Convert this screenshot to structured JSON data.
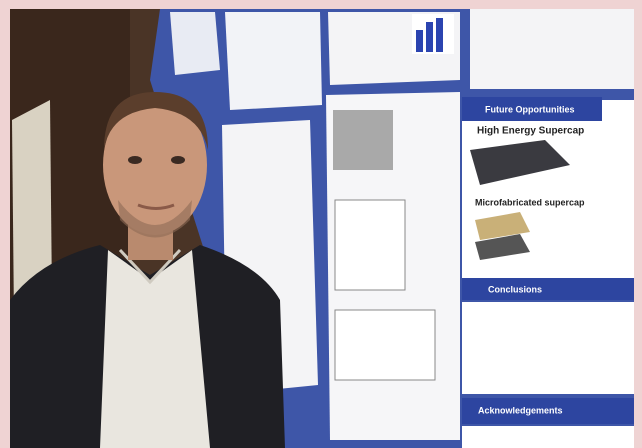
{
  "poster": {
    "headings": [
      "Future Opportunities",
      "High Energy Supercap",
      "Microfabricated supercap",
      "Conclusions",
      "Acknowledgements"
    ]
  }
}
